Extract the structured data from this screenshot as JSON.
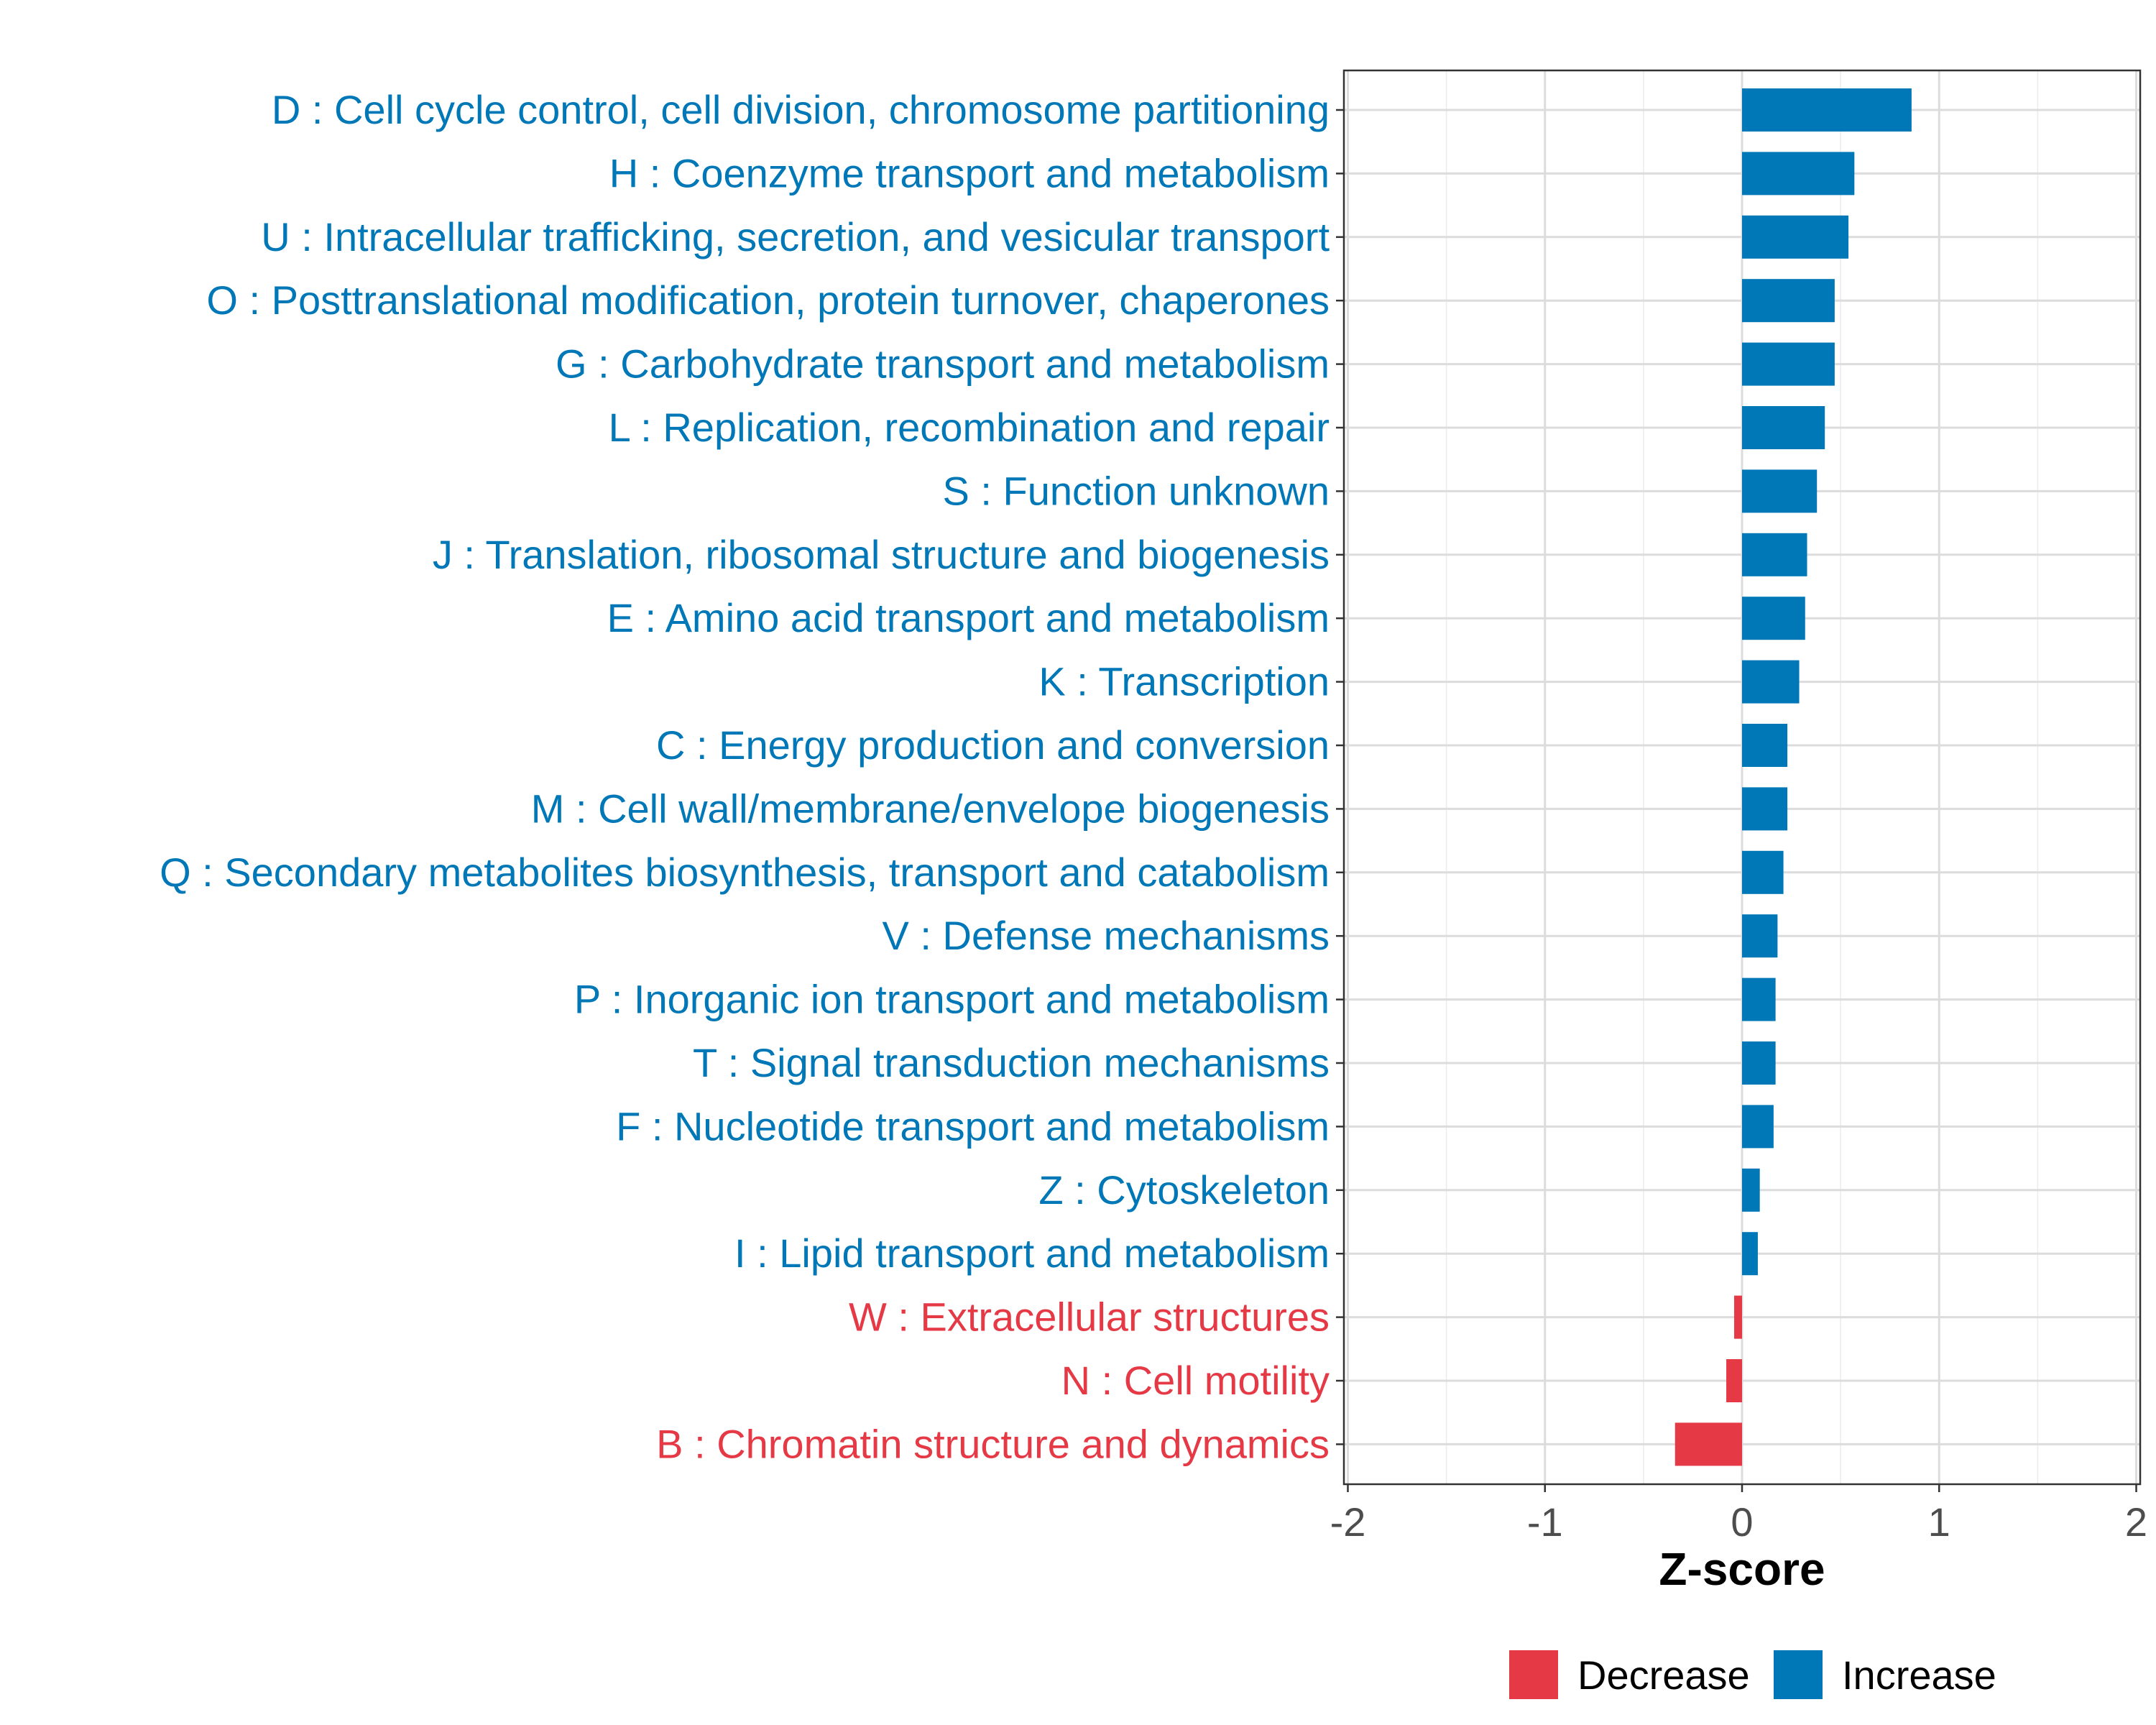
{
  "chart_data": {
    "type": "bar",
    "orientation": "horizontal",
    "title": "",
    "xlabel": "Z-score",
    "ylabel": "",
    "xlim": [
      -2.02,
      2.02
    ],
    "xticks": [
      -2,
      -1,
      0,
      1,
      2
    ],
    "xtick_labels": [
      "-2",
      "-1",
      "0",
      "1",
      "2"
    ],
    "grid": true,
    "legend_position": "bottom",
    "legend": [
      {
        "label": "Decrease",
        "color": "#E63946"
      },
      {
        "label": "Increase",
        "color": "#0077B6"
      }
    ],
    "categories": [
      "D : Cell cycle control, cell division, chromosome partitioning",
      "H : Coenzyme transport and metabolism",
      "U : Intracellular trafficking, secretion, and vesicular transport",
      "O : Posttranslational modification, protein turnover, chaperones",
      "G : Carbohydrate transport and metabolism",
      "L : Replication, recombination and repair",
      "S : Function unknown",
      "J : Translation, ribosomal structure and biogenesis",
      "E : Amino acid transport and metabolism",
      "K : Transcription",
      "C : Energy production and conversion",
      "M : Cell wall/membrane/envelope biogenesis",
      "Q : Secondary metabolites biosynthesis, transport and catabolism",
      "V : Defense mechanisms",
      "P : Inorganic ion transport and metabolism",
      "T : Signal transduction mechanisms",
      "F : Nucleotide transport and metabolism",
      "Z : Cytoskeleton",
      "I : Lipid transport and metabolism",
      "W : Extracellular structures",
      "N : Cell motility",
      "B : Chromatin structure and dynamics"
    ],
    "values": [
      0.86,
      0.57,
      0.54,
      0.47,
      0.47,
      0.42,
      0.38,
      0.33,
      0.32,
      0.29,
      0.23,
      0.23,
      0.21,
      0.18,
      0.17,
      0.17,
      0.16,
      0.09,
      0.08,
      -0.04,
      -0.08,
      -0.34
    ],
    "groups": [
      "Increase",
      "Increase",
      "Increase",
      "Increase",
      "Increase",
      "Increase",
      "Increase",
      "Increase",
      "Increase",
      "Increase",
      "Increase",
      "Increase",
      "Increase",
      "Increase",
      "Increase",
      "Increase",
      "Increase",
      "Increase",
      "Increase",
      "Decrease",
      "Decrease",
      "Decrease"
    ]
  }
}
